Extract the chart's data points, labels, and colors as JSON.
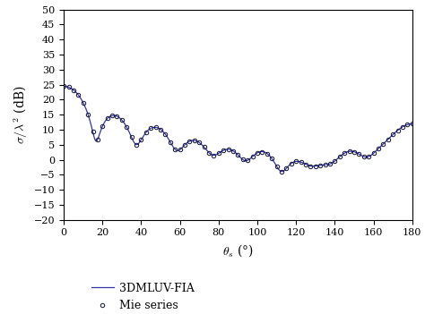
{
  "title": "",
  "xlabel": "$\\theta_s$ (°)",
  "ylabel": "$\\sigma/\\lambda^2$ (dB)",
  "xlim": [
    0,
    180
  ],
  "ylim": [
    -20,
    50
  ],
  "yticks": [
    -20,
    -15,
    -10,
    -5,
    0,
    5,
    10,
    15,
    20,
    25,
    30,
    35,
    40,
    45,
    50
  ],
  "xticks": [
    0,
    20,
    40,
    60,
    80,
    100,
    120,
    140,
    160,
    180
  ],
  "line_color": "#3333aa",
  "marker_color": "#111133",
  "line_label": "3DMLUV-FIA",
  "marker_label": "Mie series",
  "background_color": "#ffffff",
  "fig_width": 4.74,
  "fig_height": 3.51,
  "dpi": 100
}
